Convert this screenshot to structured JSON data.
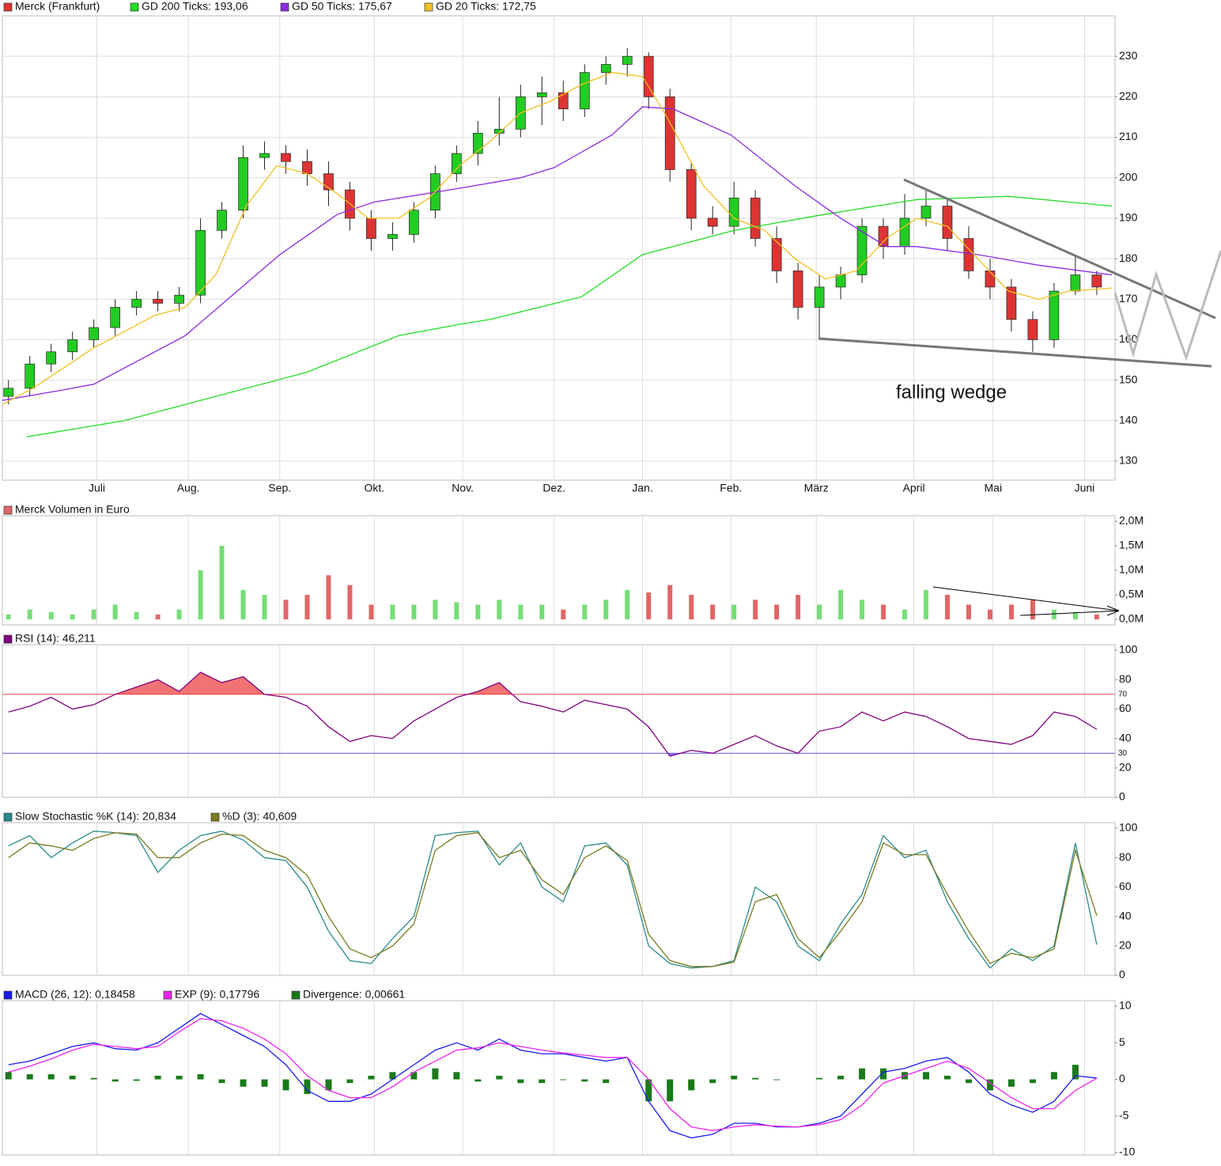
{
  "chart_data": [
    {
      "type": "candlestick",
      "name": "Merck (Frankfurt)",
      "up_color": "#22cc22",
      "down_color": "#dd3333",
      "x": [
        2,
        9,
        16,
        23,
        30,
        37,
        44,
        51,
        58,
        65,
        72,
        79,
        86,
        93,
        100,
        107,
        114,
        121,
        128,
        135,
        142,
        149,
        156,
        163,
        170,
        177,
        184,
        191,
        198,
        205,
        212,
        219,
        226,
        233,
        240,
        247,
        254,
        261,
        268,
        275,
        282,
        289,
        296,
        303,
        310,
        317,
        324,
        331,
        338,
        345,
        352,
        359
      ],
      "open": [
        146,
        148,
        154,
        157,
        160,
        163,
        168,
        170,
        169,
        171,
        187,
        192,
        205,
        206,
        204,
        201,
        197,
        190,
        185,
        186,
        192,
        201,
        206,
        211,
        212,
        220,
        221,
        217,
        226,
        228,
        230,
        220,
        202,
        190,
        188,
        195,
        185,
        177,
        168,
        173,
        176,
        188,
        183,
        190,
        193,
        185,
        177,
        173,
        165,
        160,
        172,
        176
      ],
      "high": [
        150,
        156,
        159,
        162,
        165,
        170,
        172,
        172,
        173,
        190,
        194,
        208,
        209,
        208,
        207,
        204,
        199,
        192,
        189,
        194,
        203,
        208,
        214,
        220,
        223,
        225,
        224,
        228,
        230,
        232,
        231,
        222,
        204,
        193,
        199,
        197,
        188,
        179,
        176,
        178,
        190,
        190,
        196,
        197,
        195,
        188,
        180,
        175,
        167,
        174,
        181,
        177
      ],
      "low": [
        144,
        146,
        152,
        155,
        158,
        161,
        166,
        167,
        167,
        169,
        185,
        190,
        202,
        201,
        198,
        193,
        187,
        182,
        182,
        184,
        190,
        199,
        203,
        208,
        210,
        213,
        214,
        215,
        223,
        225,
        217,
        199,
        187,
        186,
        186,
        183,
        174,
        165,
        160,
        170,
        174,
        180,
        181,
        188,
        182,
        175,
        170,
        162,
        157,
        158,
        171,
        171
      ],
      "close": [
        148,
        154,
        157,
        160,
        163,
        168,
        170,
        169,
        171,
        187,
        192,
        205,
        206,
        204,
        201,
        197,
        190,
        185,
        186,
        192,
        201,
        206,
        211,
        212,
        220,
        221,
        217,
        226,
        228,
        230,
        220,
        202,
        190,
        188,
        195,
        185,
        177,
        168,
        173,
        176,
        188,
        183,
        190,
        193,
        185,
        177,
        173,
        165,
        160,
        172,
        176,
        173
      ],
      "series": [
        {
          "name": "GD 200 Ticks: 193,06",
          "color": "#22dd22",
          "x": [
            8,
            40,
            70,
            100,
            130,
            150,
            160,
            190,
            210,
            240,
            270,
            300,
            330,
            364
          ],
          "values": [
            136,
            140,
            146,
            152,
            161,
            163.8,
            165,
            170.6,
            181,
            187,
            191,
            194.6,
            195.4,
            193
          ]
        },
        {
          "name": "GD 50 Ticks: 175,67",
          "color": "#8a2be2",
          "x": [
            0,
            20,
            30,
            60,
            91,
            110,
            122,
            150,
            170,
            181,
            200,
            210,
            220,
            239,
            260,
            275,
            290,
            300,
            320,
            340,
            364
          ],
          "values": [
            145,
            147.6,
            149,
            161,
            181,
            191,
            194,
            197.4,
            200,
            202.5,
            210.6,
            217.5,
            217,
            210.6,
            198,
            190,
            183,
            183,
            181,
            178.4,
            176
          ]
        },
        {
          "name": "GD 20 Ticks: 172,75",
          "color": "#f0c020",
          "x": [
            0,
            10,
            30,
            50,
            60,
            70,
            80,
            90,
            100,
            110,
            120,
            130,
            140,
            150,
            160,
            170,
            180,
            190,
            200,
            210,
            218,
            230,
            240,
            250,
            260,
            270,
            280,
            290,
            300,
            310,
            320,
            330,
            340,
            350,
            364
          ],
          "values": [
            144,
            148,
            158,
            166,
            168,
            176,
            193,
            203,
            201,
            196,
            190,
            190,
            195,
            203,
            209,
            216,
            219,
            223,
            226,
            225,
            215,
            198,
            190,
            187,
            180,
            175,
            177,
            185,
            190,
            188,
            180,
            172,
            170,
            172,
            172.75
          ]
        }
      ],
      "xlim": [
        0,
        365
      ],
      "xticks": [
        {
          "value": 31,
          "label": "Juli"
        },
        {
          "value": 61,
          "label": "Aug."
        },
        {
          "value": 91,
          "label": "Sep."
        },
        {
          "value": 122,
          "label": "Okt."
        },
        {
          "value": 151,
          "label": "Nov."
        },
        {
          "value": 181,
          "label": "Dez."
        },
        {
          "value": 210,
          "label": "Jan."
        },
        {
          "value": 239,
          "label": "Feb."
        },
        {
          "value": 267,
          "label": "März"
        },
        {
          "value": 299,
          "label": "April"
        },
        {
          "value": 325,
          "label": "Mai"
        },
        {
          "value": 355,
          "label": "Juni"
        }
      ],
      "ylim": [
        125.3,
        240
      ],
      "yticks": [
        130,
        140,
        150,
        160,
        170,
        180,
        190,
        200,
        210,
        220,
        230
      ],
      "grid": true,
      "annotation": "falling wedge"
    },
    {
      "type": "bar",
      "up_color": "#77dd77",
      "down_color": "#e06666",
      "x": [
        2,
        9,
        16,
        23,
        30,
        37,
        44,
        51,
        58,
        65,
        72,
        79,
        86,
        93,
        100,
        107,
        114,
        121,
        128,
        135,
        142,
        149,
        156,
        163,
        170,
        177,
        184,
        191,
        198,
        205,
        212,
        219,
        226,
        233,
        240,
        247,
        254,
        261,
        268,
        275,
        282,
        289,
        296,
        303,
        310,
        317,
        324,
        331,
        338,
        345,
        352,
        359
      ],
      "series": [
        {
          "name": "Merck Volumen in Euro",
          "color": "#e06666",
          "values": [
            0.1,
            0.2,
            0.15,
            0.1,
            0.2,
            0.3,
            0.15,
            0.1,
            0.2,
            1.0,
            1.5,
            0.6,
            0.5,
            0.4,
            0.5,
            0.9,
            0.7,
            0.3,
            0.3,
            0.3,
            0.4,
            0.35,
            0.3,
            0.4,
            0.3,
            0.3,
            0.2,
            0.3,
            0.4,
            0.6,
            0.55,
            0.7,
            0.5,
            0.3,
            0.3,
            0.4,
            0.3,
            0.5,
            0.3,
            0.6,
            0.4,
            0.3,
            0.2,
            0.6,
            0.5,
            0.3,
            0.2,
            0.3,
            0.4,
            0.2,
            0.15,
            0.1
          ]
        }
      ],
      "xlim": [
        0,
        365
      ],
      "ylim": [
        0,
        2.0
      ],
      "yticks": [
        {
          "value": 0,
          "label": "0,0M"
        },
        {
          "value": 0.5,
          "label": "0,5M"
        },
        {
          "value": 1.0,
          "label": "1,0M"
        },
        {
          "value": 1.5,
          "label": "1,5M"
        },
        {
          "value": 2.0,
          "label": "2,0M"
        }
      ]
    },
    {
      "type": "line",
      "x": [
        2,
        9,
        16,
        23,
        30,
        37,
        44,
        51,
        58,
        65,
        72,
        79,
        86,
        93,
        100,
        107,
        114,
        121,
        128,
        135,
        142,
        149,
        156,
        163,
        170,
        177,
        184,
        191,
        198,
        205,
        212,
        219,
        226,
        233,
        240,
        247,
        254,
        261,
        268,
        275,
        282,
        289,
        296,
        303,
        310,
        317,
        324,
        331,
        338,
        345,
        352,
        359
      ],
      "series": [
        {
          "name": "RSI (14): 46,211",
          "color": "#800080",
          "values": [
            58,
            62,
            68,
            60,
            63,
            70,
            75,
            80,
            72,
            85,
            78,
            82,
            70,
            68,
            62,
            48,
            38,
            42,
            40,
            52,
            60,
            68,
            72,
            78,
            65,
            62,
            58,
            66,
            63,
            60,
            48,
            28,
            32,
            30,
            36,
            42,
            35,
            30,
            45,
            48,
            58,
            52,
            58,
            55,
            48,
            40,
            38,
            36,
            42,
            58,
            55,
            46.211
          ]
        }
      ],
      "reference_lines": [
        {
          "value": 70,
          "color": "#ee4444"
        },
        {
          "value": 30,
          "color": "#6655ee"
        }
      ],
      "xlim": [
        0,
        365
      ],
      "ylim": [
        0,
        100
      ],
      "yticks": [
        0,
        20,
        40,
        60,
        80,
        100
      ]
    },
    {
      "type": "line",
      "x": [
        2,
        9,
        16,
        23,
        30,
        37,
        44,
        51,
        58,
        65,
        72,
        79,
        86,
        93,
        100,
        107,
        114,
        121,
        128,
        135,
        142,
        149,
        156,
        163,
        170,
        177,
        184,
        191,
        198,
        205,
        212,
        219,
        226,
        233,
        240,
        247,
        254,
        261,
        268,
        275,
        282,
        289,
        296,
        303,
        310,
        317,
        324,
        331,
        338,
        345,
        352,
        359
      ],
      "series": [
        {
          "name": "Slow Stochastic %K (14): 20,834",
          "color": "#2a8a8a",
          "values": [
            88,
            95,
            80,
            90,
            98,
            97,
            95,
            70,
            85,
            95,
            98,
            92,
            80,
            78,
            60,
            30,
            10,
            8,
            25,
            40,
            95,
            97,
            98,
            75,
            90,
            60,
            50,
            88,
            90,
            75,
            20,
            8,
            5,
            6,
            10,
            60,
            50,
            20,
            10,
            35,
            55,
            95,
            80,
            85,
            50,
            25,
            5,
            18,
            10,
            20,
            90,
            20.834
          ]
        },
        {
          "name": "%D (3): 40,609",
          "color": "#7a7a20",
          "values": [
            80,
            90,
            88,
            85,
            93,
            97,
            96,
            80,
            80,
            90,
            96,
            95,
            85,
            80,
            68,
            40,
            18,
            12,
            20,
            35,
            85,
            95,
            97,
            80,
            85,
            65,
            55,
            80,
            88,
            78,
            28,
            10,
            6,
            6,
            9,
            50,
            55,
            25,
            12,
            30,
            50,
            90,
            82,
            82,
            55,
            30,
            8,
            15,
            12,
            18,
            85,
            40.609
          ]
        }
      ],
      "xlim": [
        0,
        365
      ],
      "ylim": [
        0,
        100
      ],
      "yticks": [
        0,
        20,
        40,
        60,
        80,
        100
      ]
    },
    {
      "type": "combo",
      "x": [
        2,
        9,
        16,
        23,
        30,
        37,
        44,
        51,
        58,
        65,
        72,
        79,
        86,
        93,
        100,
        107,
        114,
        121,
        128,
        135,
        142,
        149,
        156,
        163,
        170,
        177,
        184,
        191,
        198,
        205,
        212,
        219,
        226,
        233,
        240,
        247,
        254,
        261,
        268,
        275,
        282,
        289,
        296,
        303,
        310,
        317,
        324,
        331,
        338,
        345,
        352,
        359
      ],
      "series": [
        {
          "name": "MACD (26, 12): 0,18458",
          "color": "#1a1aee",
          "values": [
            2,
            2.5,
            3.5,
            4.5,
            5,
            4.2,
            4,
            5,
            7,
            9,
            7.5,
            6,
            4.5,
            2,
            -1.5,
            -3,
            -3,
            -2,
            0,
            2,
            4,
            5,
            4,
            5.5,
            4,
            3.5,
            3.5,
            3,
            2.5,
            3,
            -3,
            -7,
            -8,
            -7.5,
            -6,
            -6,
            -6.5,
            -6.5,
            -6,
            -5,
            -2,
            1,
            1.5,
            2.5,
            3,
            1,
            -2,
            -3.5,
            -4.5,
            -3,
            0.5,
            0.18458
          ]
        },
        {
          "name": "EXP (9): 0,17796",
          "color": "#ee22ee",
          "values": [
            1,
            1.8,
            2.8,
            4,
            4.8,
            4.5,
            4.2,
            4.5,
            6.5,
            8.3,
            8,
            7,
            5.5,
            3.5,
            0.5,
            -1.5,
            -2.5,
            -2.5,
            -1,
            1,
            2.5,
            4,
            4.3,
            5,
            4.5,
            4,
            3.6,
            3.3,
            3,
            3,
            0,
            -4,
            -6.5,
            -7,
            -6.5,
            -6.2,
            -6.4,
            -6.5,
            -6.2,
            -5.5,
            -3.5,
            -0.5,
            0.5,
            1.5,
            2.5,
            1.5,
            -0.5,
            -2.5,
            -4,
            -4,
            -1.5,
            0.17796
          ]
        },
        {
          "name": "Divergence: 0,00661",
          "color": "#1a7a1a",
          "type": "bar",
          "values": [
            1,
            0.7,
            0.7,
            0.5,
            0.2,
            -0.3,
            -0.2,
            0.5,
            0.5,
            0.7,
            -0.5,
            -1,
            -1,
            -1.5,
            -2,
            -1.5,
            -0.5,
            0.5,
            1,
            1,
            1.5,
            1,
            -0.3,
            0.5,
            -0.5,
            -0.5,
            -0.1,
            -0.3,
            -0.5,
            0,
            -3,
            -3,
            -1.5,
            -0.5,
            0.5,
            0.2,
            -0.1,
            0,
            0.2,
            0.5,
            1.5,
            1.5,
            1,
            1,
            0.5,
            -0.5,
            -1.5,
            -1,
            -0.5,
            1,
            2,
            0.00661
          ]
        }
      ],
      "xlim": [
        0,
        365
      ],
      "ylim": [
        -10,
        10
      ],
      "yticks": [
        10,
        5,
        0,
        -5,
        -10
      ]
    }
  ]
}
